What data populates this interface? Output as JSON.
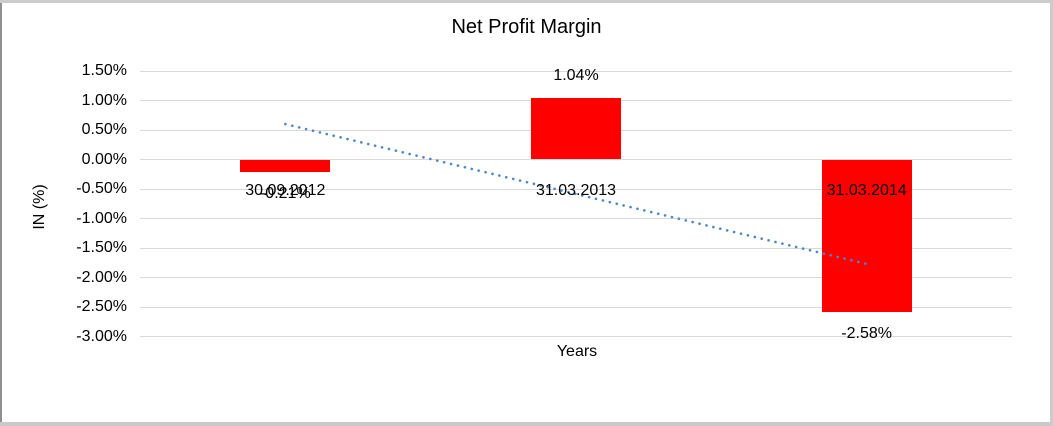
{
  "chart_data": {
    "type": "bar",
    "title": "Net Profit Margin",
    "xlabel": "Years",
    "ylabel": "IN (%)",
    "categories": [
      "30.09.2012",
      "31.03.2013",
      "31.03.2014"
    ],
    "values": [
      -0.21,
      1.04,
      -2.58
    ],
    "data_labels": [
      "-0.21%",
      "1.04%",
      "-2.58%"
    ],
    "value_unit": "percent",
    "ylim": [
      -3.0,
      1.5
    ],
    "ytick_step": 0.5,
    "yticks": [
      {
        "label": "1.50%",
        "value": 1.5
      },
      {
        "label": "1.00%",
        "value": 1.0
      },
      {
        "label": "0.50%",
        "value": 0.5
      },
      {
        "label": "0.00%",
        "value": 0.0
      },
      {
        "label": "-0.50%",
        "value": -0.5
      },
      {
        "label": "-1.00%",
        "value": -1.0
      },
      {
        "label": "-1.50%",
        "value": -1.5
      },
      {
        "label": "-2.00%",
        "value": -2.0
      },
      {
        "label": "-2.50%",
        "value": -2.5
      },
      {
        "label": "-3.00%",
        "value": -3.0
      }
    ],
    "bar_color": "#ff0000",
    "gridline_color": "#d9d9d9",
    "grid": "horizontal",
    "legend": "none",
    "trendline": {
      "style": "dotted",
      "color": "#4f86c6",
      "start": {
        "category_index": 0,
        "value": 0.6
      },
      "end": {
        "category_index": 2,
        "value": -1.77
      }
    }
  }
}
